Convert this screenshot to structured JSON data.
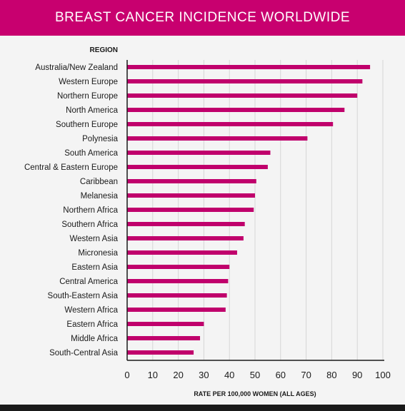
{
  "colors": {
    "header": "#c8006f",
    "bar": "#c0006c",
    "text": "#1a1a1a",
    "axis": "#1a1a1a",
    "background": "#f4f4f4",
    "footer": "#1a1a1a"
  },
  "chart_data": {
    "type": "bar",
    "orientation": "horizontal",
    "title": "BREAST CANCER INCIDENCE WORLDWIDE",
    "ylabel": "REGION",
    "xlabel": "RATE PER 100,000 WOMEN (ALL AGES)",
    "xlim": [
      0,
      100
    ],
    "xticks": [
      0,
      10,
      20,
      30,
      40,
      50,
      60,
      70,
      80,
      90,
      100
    ],
    "grid": true,
    "categories": [
      "Australia/New Zealand",
      "Western Europe",
      "Northern Europe",
      "North America",
      "Southern Europe",
      "Polynesia",
      "South America",
      "Central & Eastern Europe",
      "Caribbean",
      "Melanesia",
      "Northern Africa",
      "Southern Africa",
      "Western Asia",
      "Micronesia",
      "Eastern Asia",
      "Central America",
      "South-Eastern Asia",
      "Western Africa",
      "Eastern Africa",
      "Middle Africa",
      "South-Central Asia"
    ],
    "values": [
      95,
      92,
      90,
      85,
      80.5,
      70.5,
      56,
      55,
      50.5,
      50,
      49.5,
      46,
      45.5,
      43,
      40,
      39.5,
      39,
      38.5,
      30,
      28.5,
      26
    ]
  }
}
